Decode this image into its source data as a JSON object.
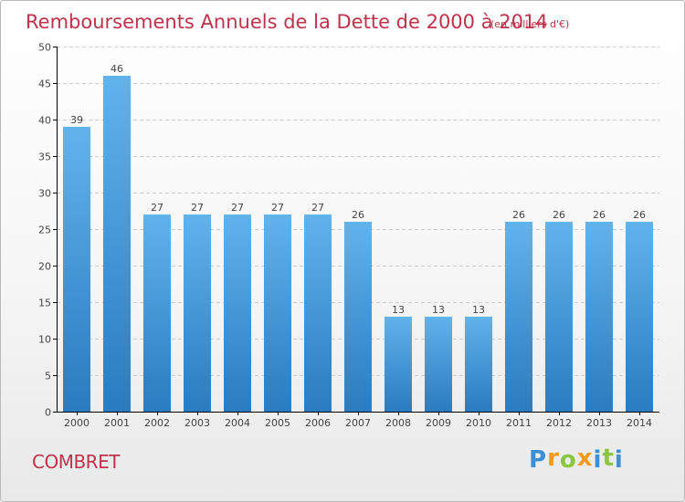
{
  "chart_data": {
    "type": "bar",
    "title": "Remboursements Annuels de la Dette de 2000 à 2014",
    "subtitle": "(en milliers d'€)",
    "categories": [
      "2000",
      "2001",
      "2002",
      "2003",
      "2004",
      "2005",
      "2006",
      "2007",
      "2008",
      "2009",
      "2010",
      "2011",
      "2012",
      "2013",
      "2014"
    ],
    "values": [
      39,
      46,
      27,
      27,
      27,
      27,
      27,
      26,
      13,
      13,
      13,
      26,
      26,
      26,
      26
    ],
    "value_labels": [
      "39",
      "46",
      "27",
      "27",
      "27",
      "27",
      "27",
      "26",
      "13",
      "13",
      "13",
      "26",
      "26",
      "26",
      "26"
    ],
    "ylim": [
      0,
      50
    ],
    "yticks": [
      0,
      5,
      10,
      15,
      20,
      25,
      30,
      35,
      40,
      45,
      50
    ],
    "grid": true,
    "bar_color_top": "#62b2ec",
    "bar_color_bottom": "#2a7bc0"
  },
  "footer": {
    "commune": "COMBRET",
    "logo_letters": [
      "P",
      "r",
      "o",
      "x",
      "i",
      "t",
      "i"
    ],
    "logo_colors": [
      "#3a8fd6",
      "#f39a1d",
      "#8cc63f",
      "#f39a1d",
      "#3a8fd6",
      "#8cc63f",
      "#3a8fd6"
    ]
  }
}
